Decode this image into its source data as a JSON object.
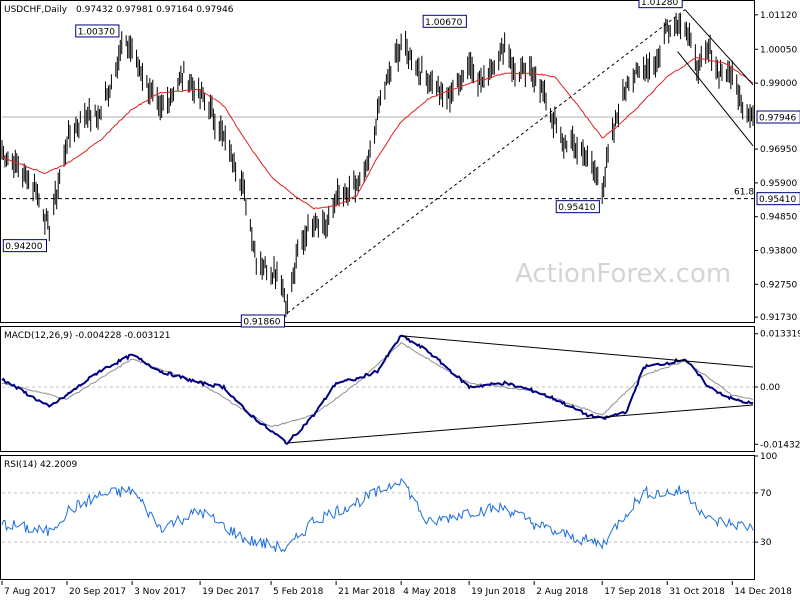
{
  "chart_data": {
    "type": "line",
    "header": {
      "symbol": "USDCHF,Daily",
      "ohlc": "0.97432 0.97981 0.97164 0.97946"
    },
    "watermark": "ActionForex.com",
    "colors": {
      "price": "#000000",
      "sma": "#e02020",
      "macd": "#000080",
      "signal": "#909090",
      "rsi": "#1e6fd9",
      "label_border": "#000080",
      "grid": "#c0c0c0"
    },
    "x_axis": {
      "labels": [
        "7 Aug 2017",
        "20 Sep 2017",
        "3 Nov 2017",
        "19 Dec 2017",
        "5 Feb 2018",
        "21 Mar 2018",
        "4 May 2018",
        "19 Jun 2018",
        "2 Aug 2018",
        "17 Sep 2018",
        "31 Oct 2018",
        "14 Dec 2018"
      ],
      "dates": [
        "2017-08-07",
        "2017-09-20",
        "2017-11-03",
        "2017-12-19",
        "2018-02-05",
        "2018-03-21",
        "2018-05-04",
        "2018-06-19",
        "2018-08-02",
        "2018-09-17",
        "2018-10-31",
        "2018-12-14"
      ],
      "range": [
        "2017-08-07",
        "2018-12-28"
      ]
    },
    "price_panel": {
      "ylim": [
        0.9158,
        1.0158
      ],
      "ticks": [
        1.0112,
        1.0005,
        0.99,
        0.9695,
        0.959,
        0.9485,
        0.938,
        0.9275,
        0.9173
      ],
      "tick_labels": [
        "1.01120",
        "1.00050",
        "0.99000",
        "0.96950",
        "0.95900",
        "0.94850",
        "0.93800",
        "0.92750",
        "0.91730"
      ],
      "current_price": 0.97946,
      "current_label": "0.97946",
      "fib_level": 0.9541,
      "fib_label": "61.8",
      "fib_value_label": "0.95410",
      "close_path": [
        [
          "2017-08-07",
          0.968
        ],
        [
          "2017-08-18",
          0.964
        ],
        [
          "2017-08-30",
          0.957
        ],
        [
          "2017-09-08",
          0.944
        ],
        [
          "2017-09-11",
          0.952
        ],
        [
          "2017-09-20",
          0.972
        ],
        [
          "2017-10-02",
          0.98
        ],
        [
          "2017-10-12",
          0.98
        ],
        [
          "2017-10-20",
          0.99
        ],
        [
          "2017-10-27",
          1.002
        ],
        [
          "2017-11-02",
          1.001
        ],
        [
          "2017-11-10",
          0.993
        ],
        [
          "2017-11-22",
          0.981
        ],
        [
          "2017-11-30",
          0.987
        ],
        [
          "2017-12-08",
          0.993
        ],
        [
          "2017-12-15",
          0.988
        ],
        [
          "2017-12-22",
          0.985
        ],
        [
          "2018-01-02",
          0.975
        ],
        [
          "2018-01-12",
          0.965
        ],
        [
          "2018-01-19",
          0.954
        ],
        [
          "2018-01-26",
          0.935
        ],
        [
          "2018-02-05",
          0.932
        ],
        [
          "2018-02-12",
          0.93
        ],
        [
          "2018-02-16",
          0.92
        ],
        [
          "2018-02-23",
          0.937
        ],
        [
          "2018-03-06",
          0.948
        ],
        [
          "2018-03-15",
          0.946
        ],
        [
          "2018-03-21",
          0.955
        ],
        [
          "2018-03-30",
          0.955
        ],
        [
          "2018-04-11",
          0.963
        ],
        [
          "2018-04-20",
          0.985
        ],
        [
          "2018-05-04",
          1.002
        ],
        [
          "2018-05-15",
          0.995
        ],
        [
          "2018-05-25",
          0.99
        ],
        [
          "2018-06-04",
          0.985
        ],
        [
          "2018-06-12",
          0.99
        ],
        [
          "2018-06-19",
          0.996
        ],
        [
          "2018-06-28",
          0.99
        ],
        [
          "2018-07-05",
          0.995
        ],
        [
          "2018-07-13",
          1.003
        ],
        [
          "2018-07-20",
          0.993
        ],
        [
          "2018-08-02",
          0.993
        ],
        [
          "2018-08-10",
          0.985
        ],
        [
          "2018-08-20",
          0.972
        ],
        [
          "2018-08-28",
          0.971
        ],
        [
          "2018-09-07",
          0.967
        ],
        [
          "2018-09-17",
          0.958
        ],
        [
          "2018-09-26",
          0.978
        ],
        [
          "2018-10-04",
          0.991
        ],
        [
          "2018-10-15",
          0.994
        ],
        [
          "2018-10-25",
          0.998
        ],
        [
          "2018-10-31",
          1.008
        ],
        [
          "2018-11-12",
          1.009
        ],
        [
          "2018-11-20",
          0.995
        ],
        [
          "2018-11-28",
          1.0
        ],
        [
          "2018-12-06",
          0.993
        ],
        [
          "2018-12-14",
          0.993
        ],
        [
          "2018-12-21",
          0.983
        ],
        [
          "2018-12-28",
          0.979
        ]
      ],
      "sma_path": [
        [
          "2017-08-07",
          0.967
        ],
        [
          "2017-09-05",
          0.962
        ],
        [
          "2017-09-20",
          0.965
        ],
        [
          "2017-10-12",
          0.972
        ],
        [
          "2017-11-03",
          0.982
        ],
        [
          "2017-11-22",
          0.987
        ],
        [
          "2017-12-19",
          0.988
        ],
        [
          "2018-01-04",
          0.983
        ],
        [
          "2018-01-19",
          0.972
        ],
        [
          "2018-02-05",
          0.961
        ],
        [
          "2018-02-21",
          0.955
        ],
        [
          "2018-03-06",
          0.951
        ],
        [
          "2018-03-21",
          0.952
        ],
        [
          "2018-04-04",
          0.955
        ],
        [
          "2018-04-18",
          0.967
        ],
        [
          "2018-05-04",
          0.978
        ],
        [
          "2018-05-22",
          0.985
        ],
        [
          "2018-06-19",
          0.99
        ],
        [
          "2018-07-13",
          0.993
        ],
        [
          "2018-08-02",
          0.993
        ],
        [
          "2018-08-16",
          0.992
        ],
        [
          "2018-08-30",
          0.984
        ],
        [
          "2018-09-17",
          0.973
        ],
        [
          "2018-09-26",
          0.976
        ],
        [
          "2018-10-10",
          0.982
        ],
        [
          "2018-10-31",
          0.992
        ],
        [
          "2018-11-20",
          0.998
        ],
        [
          "2018-12-10",
          0.996
        ],
        [
          "2018-12-28",
          0.99
        ]
      ],
      "trendlines": [
        {
          "style": "dashed",
          "from": [
            "2018-02-16",
            0.9186
          ],
          "to": [
            "2018-11-12",
            1.0128
          ]
        },
        {
          "style": "solid",
          "from": [
            "2018-11-12",
            1.0128
          ],
          "to": [
            "2018-12-28",
            0.9895
          ]
        },
        {
          "style": "solid",
          "from": [
            "2018-11-07",
            0.9998
          ],
          "to": [
            "2018-12-28",
            0.9705
          ]
        }
      ],
      "labels": [
        {
          "text": "1.00370",
          "date": "2017-10-27",
          "value": 1.0037,
          "anchor": "above"
        },
        {
          "text": "0.94200",
          "date": "2017-09-08",
          "value": 0.942,
          "anchor": "below"
        },
        {
          "text": "0.91860",
          "date": "2018-02-16",
          "value": 0.9186,
          "anchor": "below"
        },
        {
          "text": "1.00670",
          "date": "2018-06-19",
          "value": 1.0067,
          "anchor": "above"
        },
        {
          "text": "0.95410",
          "date": "2018-09-17",
          "value": 0.9541,
          "anchor": "below"
        },
        {
          "text": "1.01280",
          "date": "2018-11-12",
          "value": 1.0128,
          "anchor": "above"
        }
      ]
    },
    "macd_panel": {
      "title": "MACD(12,26,9) -0.004228 -0.003121",
      "ylim": [
        -0.016,
        0.015
      ],
      "ticks": [
        0.013319,
        0.0,
        -0.014323
      ],
      "tick_labels": [
        "0.013319",
        "0.00",
        "-0.014323"
      ],
      "macd_path": [
        [
          "2017-08-07",
          0.002
        ],
        [
          "2017-09-08",
          -0.005
        ],
        [
          "2017-09-20",
          -0.002
        ],
        [
          "2017-10-12",
          0.004
        ],
        [
          "2017-11-03",
          0.008
        ],
        [
          "2017-11-22",
          0.004
        ],
        [
          "2017-12-19",
          0.001
        ],
        [
          "2018-01-04",
          0.0
        ],
        [
          "2018-01-19",
          -0.006
        ],
        [
          "2018-02-05",
          -0.011
        ],
        [
          "2018-02-16",
          -0.014
        ],
        [
          "2018-03-06",
          -0.007
        ],
        [
          "2018-03-21",
          0.001
        ],
        [
          "2018-04-04",
          0.002
        ],
        [
          "2018-04-18",
          0.004
        ],
        [
          "2018-05-04",
          0.0128
        ],
        [
          "2018-05-22",
          0.009
        ],
        [
          "2018-06-19",
          0.0
        ],
        [
          "2018-07-13",
          0.001
        ],
        [
          "2018-08-02",
          -0.001
        ],
        [
          "2018-08-16",
          -0.003
        ],
        [
          "2018-09-07",
          -0.007
        ],
        [
          "2018-09-17",
          -0.008
        ],
        [
          "2018-10-04",
          -0.006
        ],
        [
          "2018-10-15",
          0.005
        ],
        [
          "2018-10-31",
          0.006
        ],
        [
          "2018-11-12",
          0.007
        ],
        [
          "2018-11-28",
          0.0
        ],
        [
          "2018-12-14",
          -0.003
        ],
        [
          "2018-12-28",
          -0.0042
        ]
      ],
      "signal_path": [
        [
          "2017-08-07",
          0.001
        ],
        [
          "2017-09-20",
          -0.003
        ],
        [
          "2017-11-03",
          0.007
        ],
        [
          "2017-12-19",
          0.001
        ],
        [
          "2018-02-05",
          -0.01
        ],
        [
          "2018-03-06",
          -0.007
        ],
        [
          "2018-04-04",
          0.001
        ],
        [
          "2018-05-04",
          0.011
        ],
        [
          "2018-06-19",
          0.001
        ],
        [
          "2018-08-02",
          -0.001
        ],
        [
          "2018-09-17",
          -0.007
        ],
        [
          "2018-10-15",
          0.003
        ],
        [
          "2018-11-12",
          0.0065
        ],
        [
          "2018-12-14",
          -0.002
        ],
        [
          "2018-12-28",
          -0.0031
        ]
      ],
      "trendlines": [
        {
          "from": [
            "2018-02-16",
            -0.014
          ],
          "to": [
            "2018-12-28",
            -0.0045
          ]
        },
        {
          "from": [
            "2018-05-04",
            0.0128
          ],
          "to": [
            "2018-12-28",
            0.005
          ]
        }
      ]
    },
    "rsi_panel": {
      "title": "RSI(14) 42.2009",
      "ylim": [
        0,
        100
      ],
      "ticks": [
        100,
        70,
        30
      ],
      "tick_labels": [
        "100",
        "70",
        "30"
      ],
      "levels": [
        70,
        30
      ],
      "rsi_path": [
        [
          "2017-08-07",
          45
        ],
        [
          "2017-09-08",
          38
        ],
        [
          "2017-09-20",
          55
        ],
        [
          "2017-10-12",
          68
        ],
        [
          "2017-11-03",
          72
        ],
        [
          "2017-11-22",
          42
        ],
        [
          "2017-12-19",
          55
        ],
        [
          "2018-01-19",
          32
        ],
        [
          "2018-02-16",
          24
        ],
        [
          "2018-03-06",
          48
        ],
        [
          "2018-03-21",
          55
        ],
        [
          "2018-04-18",
          70
        ],
        [
          "2018-05-04",
          82
        ],
        [
          "2018-05-22",
          45
        ],
        [
          "2018-06-19",
          55
        ],
        [
          "2018-07-13",
          58
        ],
        [
          "2018-08-02",
          45
        ],
        [
          "2018-08-16",
          38
        ],
        [
          "2018-09-17",
          28
        ],
        [
          "2018-10-04",
          55
        ],
        [
          "2018-10-15",
          70
        ],
        [
          "2018-10-31",
          70
        ],
        [
          "2018-11-12",
          72
        ],
        [
          "2018-11-28",
          48
        ],
        [
          "2018-12-14",
          45
        ],
        [
          "2018-12-28",
          42
        ]
      ]
    }
  }
}
